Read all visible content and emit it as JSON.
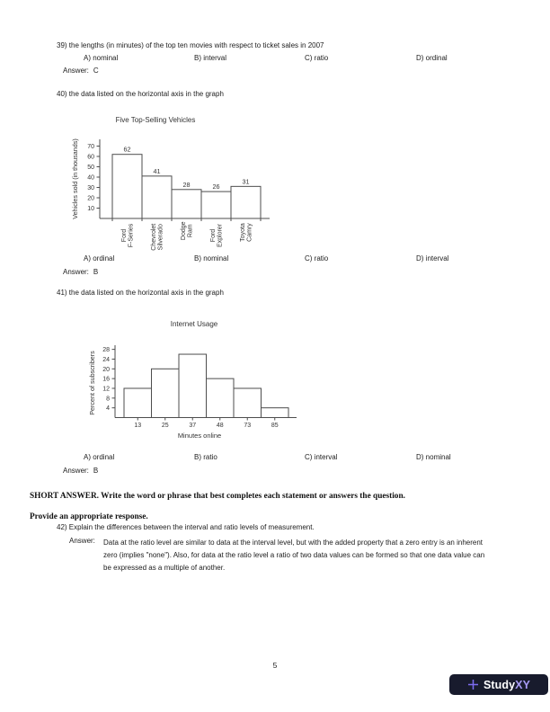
{
  "q39": {
    "text": "39) the lengths (in minutes) of the top ten movies with respect to ticket sales in 2007",
    "options": [
      "A) nominal",
      "B) interval",
      "C) ratio",
      "D) ordinal"
    ],
    "answer": {
      "label": "Answer:",
      "value": "C"
    }
  },
  "q40": {
    "text": "40) the data listed on the horizontal axis in the graph",
    "options": [
      "A) ordinal",
      "B) nominal",
      "C) ratio",
      "D) interval"
    ],
    "answer": {
      "label": "Answer:",
      "value": "B"
    }
  },
  "q41": {
    "text": "41) the data listed on the horizontal axis in the graph",
    "options": [
      "A) ordinal",
      "B) ratio",
      "C) interval",
      "D) nominal"
    ],
    "answer": {
      "label": "Answer:",
      "value": "B"
    }
  },
  "short_answer": {
    "heading": "SHORT ANSWER.  Write the word or phrase that best completes each statement or answers the question.",
    "instruction": "Provide an appropriate response.",
    "q42": {
      "text": "42) Explain the differences between the interval and ratio levels of measurement.",
      "answer_label": "Answer:",
      "answer_text": "Data at the ratio level are similar to data at the interval level, but with the added property that a zero entry is an inherent zero (implies \"none\"). Also, for data at the ratio level a ratio of two data values can be formed so that one data value can be expressed as a multiple of another."
    }
  },
  "footer": {
    "page_number": "5",
    "logo": {
      "brand_primary": "Study",
      "brand_secondary": "XY",
      "bg_color": "#181b2d",
      "plus_color": "#7d6cf0",
      "primary_color": "#ffffff",
      "secondary_color": "#a89bf5"
    }
  },
  "chart_data": [
    {
      "type": "bar",
      "title": "Five Top-Selling Vehicles",
      "ylabel": "Vehicles sold (in thousands)",
      "xlabel": "",
      "categories": [
        "Ford\nF-Series",
        "Chevrolet\nSilverado",
        "Dodge\nRam",
        "Ford\nExplorer",
        "Toyota\nCamry"
      ],
      "values": [
        62,
        41,
        28,
        26,
        31
      ],
      "yticks": [
        10,
        20,
        30,
        40,
        50,
        60,
        70
      ],
      "ylim": [
        0,
        77
      ],
      "grid": false,
      "legend": false,
      "bar_fill": "#ffffff",
      "bar_stroke": "#4d4d4d",
      "value_labels": [
        62,
        41,
        28,
        26,
        31
      ]
    },
    {
      "type": "histogram",
      "title": "Internet Usage",
      "ylabel": "Percent of subscribers",
      "xlabel": "Minutes online",
      "categories": [
        "13",
        "25",
        "37",
        "48",
        "73",
        "85"
      ],
      "values": [
        12,
        20,
        26,
        16,
        12,
        4
      ],
      "yticks": [
        4,
        8,
        12,
        16,
        20,
        24,
        28
      ],
      "ylim": [
        0,
        30
      ],
      "grid": false,
      "legend": false,
      "bar_fill": "#ffffff",
      "bar_stroke": "#4d4d4d"
    }
  ]
}
